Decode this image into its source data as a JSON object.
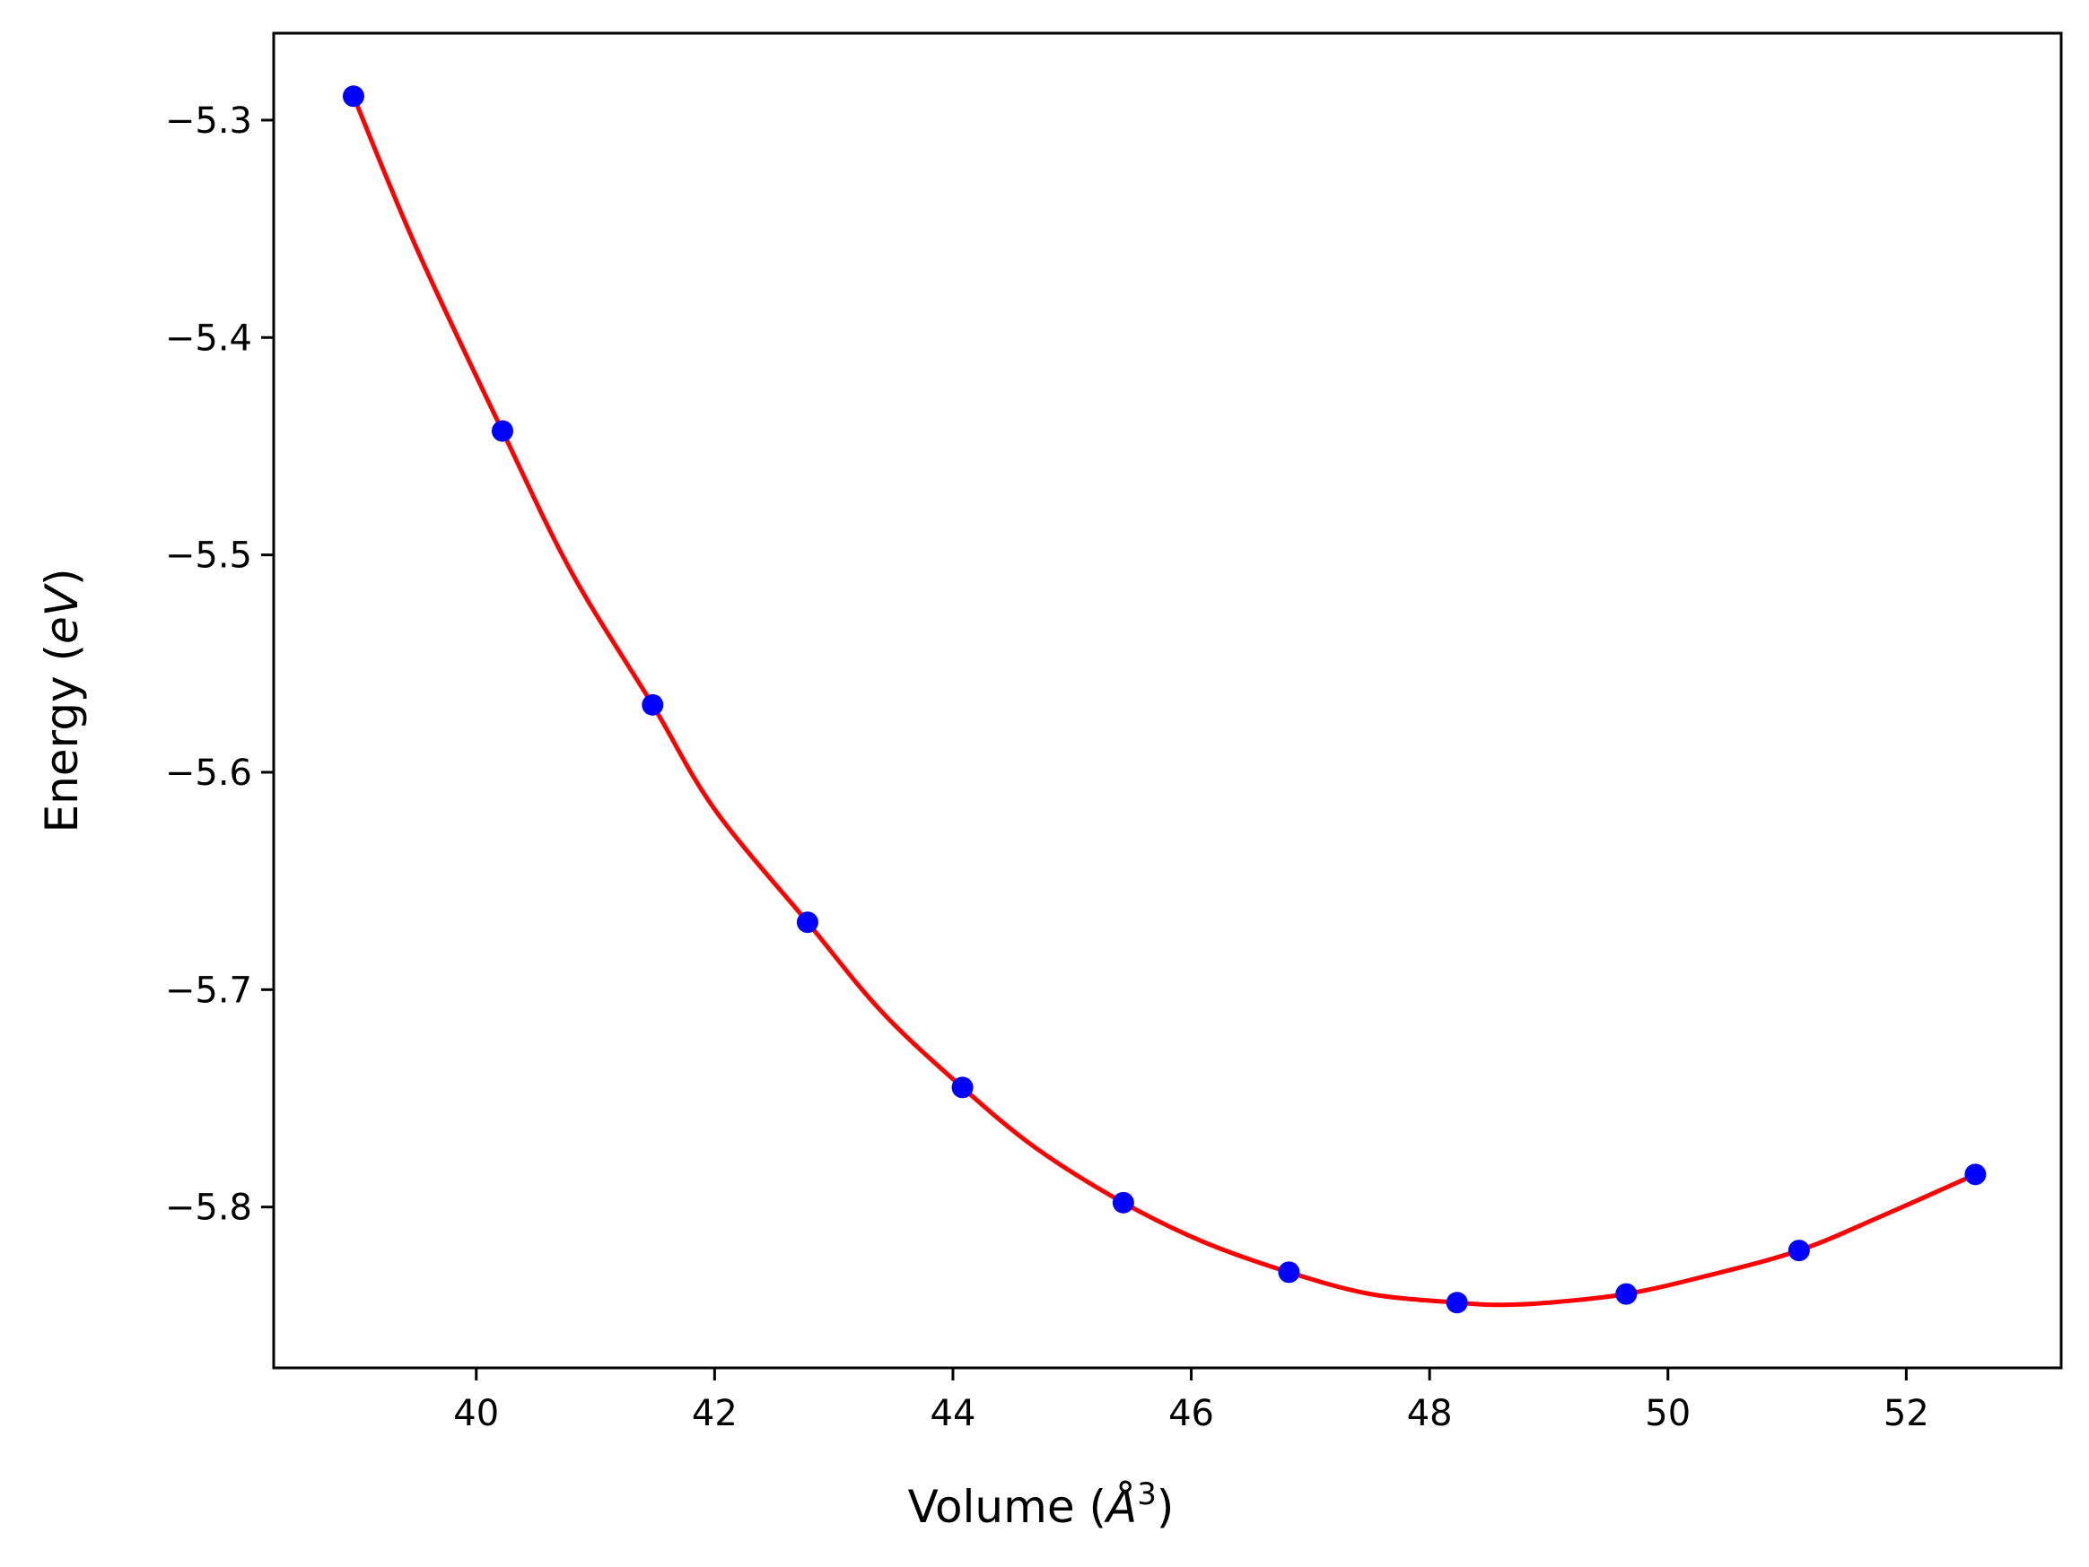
{
  "chart_data": {
    "type": "scatter",
    "title": "",
    "xlabel_text": "Volume (",
    "xlabel_unit": "Å",
    "xlabel_sup": "3",
    "xlabel_close": ")",
    "ylabel_text": "Energy (",
    "ylabel_unit": "eV",
    "ylabel_close": ")",
    "xlim": [
      38.3,
      53.3
    ],
    "ylim": [
      -5.874,
      -5.26
    ],
    "xticks": [
      40,
      42,
      44,
      46,
      48,
      50,
      52
    ],
    "xtick_labels": [
      "40",
      "42",
      "44",
      "46",
      "48",
      "50",
      "52"
    ],
    "yticks": [
      -5.3,
      -5.4,
      -5.5,
      -5.6,
      -5.7,
      -5.8
    ],
    "ytick_labels": [
      "−5.3",
      "−5.4",
      "−5.5",
      "−5.6",
      "−5.7",
      "−5.8"
    ],
    "grid": false,
    "series": [
      {
        "kind": "points",
        "color": "#0000ff",
        "x": [
          38.97,
          40.22,
          41.48,
          42.78,
          44.08,
          45.43,
          46.82,
          48.23,
          49.65,
          51.1,
          52.58
        ],
        "y": [
          -5.289,
          -5.443,
          -5.569,
          -5.669,
          -5.745,
          -5.798,
          -5.83,
          -5.844,
          -5.84,
          -5.82,
          -5.785
        ]
      },
      {
        "kind": "fit-curve",
        "color": "#ff0000",
        "x": [
          38.97,
          39.5,
          40.22,
          40.8,
          41.48,
          42.0,
          42.78,
          43.4,
          44.08,
          44.7,
          45.43,
          46.1,
          46.82,
          47.5,
          48.23,
          48.6,
          49.0,
          49.65,
          50.3,
          51.1,
          51.8,
          52.58
        ],
        "y": [
          -5.289,
          -5.359,
          -5.443,
          -5.508,
          -5.569,
          -5.617,
          -5.669,
          -5.71,
          -5.745,
          -5.773,
          -5.798,
          -5.816,
          -5.83,
          -5.84,
          -5.844,
          -5.845,
          -5.844,
          -5.84,
          -5.832,
          -5.82,
          -5.804,
          -5.785
        ]
      }
    ]
  }
}
